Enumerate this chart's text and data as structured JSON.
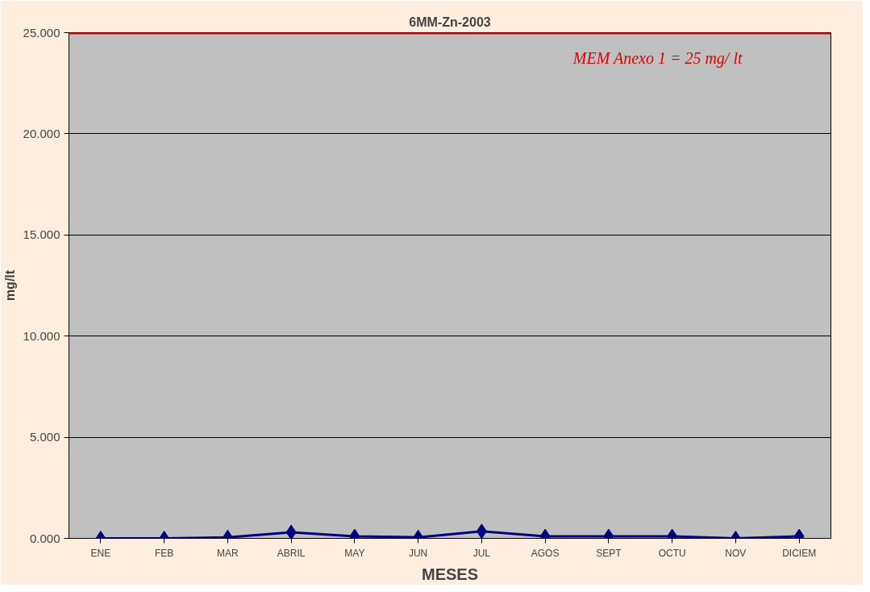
{
  "chart_data": {
    "type": "line",
    "title": "6MM-Zn-2003",
    "xlabel": "MESES",
    "ylabel": "mg/lt",
    "categories": [
      "ENE",
      "FEB",
      "MAR",
      "ABRIL",
      "MAY",
      "JUN",
      "JUL",
      "AGOS",
      "SEPT",
      "OCTU",
      "NOV",
      "DICIEM"
    ],
    "series": [
      {
        "color": "#000080",
        "values": [
          0.0,
          0.0,
          0.05,
          0.3,
          0.1,
          0.05,
          0.35,
          0.1,
          0.1,
          0.1,
          0.0,
          0.1
        ]
      }
    ],
    "ylim": [
      0,
      25
    ],
    "yticks": [
      {
        "value": 0,
        "label": "0.000"
      },
      {
        "value": 5,
        "label": "5.000"
      },
      {
        "value": 10,
        "label": "10.000"
      },
      {
        "value": 15,
        "label": "15.000"
      },
      {
        "value": 20,
        "label": "20.000"
      },
      {
        "value": 25,
        "label": "25.000"
      }
    ],
    "ref_lines": [
      {
        "axis": "y",
        "value": 25,
        "label": "MEM Anexo 1 = 25 mg/ lt",
        "color": "#e00000"
      }
    ],
    "grid": "y",
    "marker": "diamond",
    "line_style": "solid"
  }
}
